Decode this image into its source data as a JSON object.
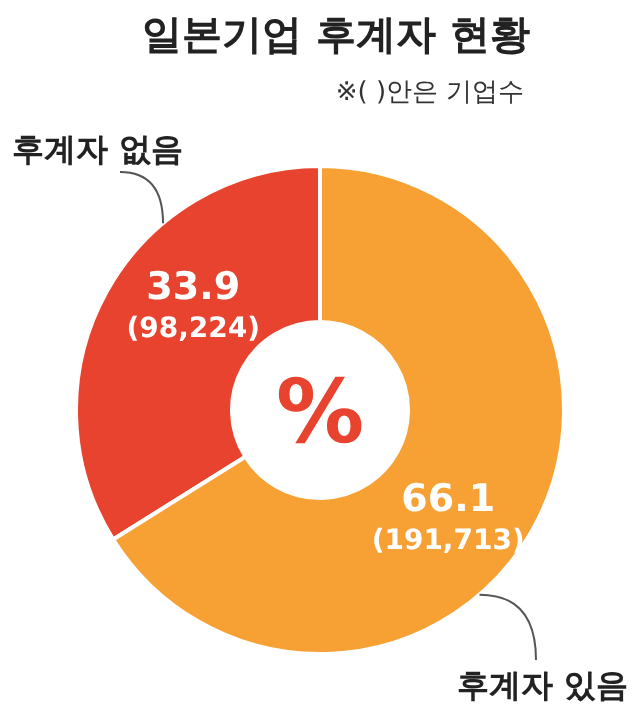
{
  "chart_data": {
    "type": "donut",
    "title": "일본기업 후계자 현황",
    "subtitle": "※( )안은 기업수",
    "categories": [
      "후계자 없음",
      "후계자 있음"
    ],
    "values": [
      33.9,
      66.1
    ],
    "colors": [
      "#e8432e",
      "#f7a033"
    ],
    "value_labels": [
      "33.9 (98,224)",
      "66.1 (191,713)"
    ],
    "annotations": [
      "%"
    ]
  }
}
